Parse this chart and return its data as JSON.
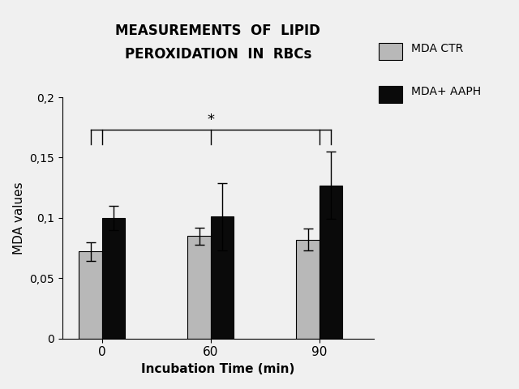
{
  "title_line1": "MEASUREMENTS  OF  LIPID",
  "title_line2": "PEROXIDATION  IN  RBCs",
  "xlabel": "Incubation Time (min)",
  "ylabel": "MDA values",
  "groups": [
    "0",
    "60",
    "90"
  ],
  "ctr_values": [
    0.072,
    0.085,
    0.082
  ],
  "aaph_values": [
    0.1,
    0.101,
    0.127
  ],
  "ctr_errors": [
    0.008,
    0.007,
    0.009
  ],
  "aaph_errors": [
    0.01,
    0.028,
    0.028
  ],
  "ctr_color": "#b8b8b8",
  "aaph_color": "#0a0a0a",
  "ylim": [
    0,
    0.2
  ],
  "yticks": [
    0,
    0.05,
    0.1,
    0.15,
    0.2
  ],
  "ytick_labels": [
    "0",
    "0,05",
    "0,1",
    "0,15",
    "0,2"
  ],
  "legend_labels": [
    "MDA CTR",
    "MDA+ AAPH"
  ],
  "bar_width": 0.32,
  "group_positions": [
    1.0,
    2.5,
    4.0
  ],
  "sig_annotation": "*",
  "background_color": "#f0f0f0"
}
